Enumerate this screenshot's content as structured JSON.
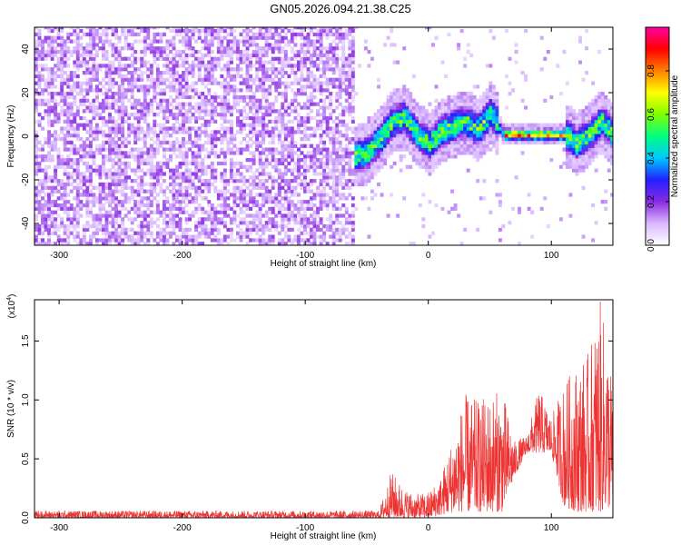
{
  "title": "GN05.2026.094.21.38.C25",
  "chart_data": [
    {
      "type": "heatmap",
      "xlabel": "Height of straight line (km)",
      "ylabel": "Frequency (Hz)",
      "xlim": [
        -320,
        150
      ],
      "ylim": [
        -50,
        50
      ],
      "xticks": [
        -300,
        -200,
        -100,
        0,
        100
      ],
      "yticks": [
        -40,
        -20,
        0,
        20,
        40
      ],
      "colorbar": {
        "label": "Normalized spectral amplitude",
        "range": [
          0,
          1
        ],
        "ticks": [
          "0.0",
          "0.2",
          "0.4",
          "0.6",
          "0.8"
        ],
        "tick_values": [
          0,
          0.2,
          0.4,
          0.6,
          0.8
        ],
        "colormap": [
          "#ffffff",
          "#d9b8ff",
          "#8a2be2",
          "#2020ff",
          "#00c8ff",
          "#00ff80",
          "#80ff00",
          "#ffff00",
          "#ff8000",
          "#ff0000",
          "#ff00a0"
        ]
      },
      "ridge": {
        "x": [
          -60,
          -50,
          -40,
          -30,
          -20,
          -10,
          0,
          10,
          20,
          30,
          40,
          50,
          60,
          70,
          80,
          90,
          100,
          110,
          120,
          130,
          140,
          150
        ],
        "y": [
          -10,
          -8,
          -2,
          6,
          8,
          0,
          -4,
          2,
          4,
          6,
          2,
          10,
          0,
          0,
          0,
          0,
          0,
          0,
          -4,
          0,
          6,
          0
        ]
      }
    },
    {
      "type": "line",
      "xlabel": "Height of straight line (km)",
      "ylabel": "SNR (10 * v/v)",
      "scale_label": "(x10",
      "scale_exp": "4",
      "xlim": [
        -320,
        150
      ],
      "ylim": [
        0,
        1.85
      ],
      "xticks": [
        -300,
        -200,
        -100,
        0,
        100
      ],
      "yticks": [
        0.0,
        0.5,
        1.0,
        1.5
      ],
      "color": "#ee3333",
      "envelope": {
        "x": [
          -320,
          -40,
          -30,
          -20,
          -10,
          0,
          10,
          20,
          30,
          40,
          50,
          60,
          70,
          80,
          90,
          100,
          110,
          120,
          130,
          140,
          150
        ],
        "lower": [
          0.0,
          0.0,
          0.0,
          0.0,
          0.0,
          0.0,
          0.02,
          0.05,
          0.05,
          0.05,
          0.05,
          0.05,
          0.35,
          0.55,
          0.55,
          0.55,
          0.1,
          0.05,
          0.05,
          0.05,
          0.1
        ],
        "upper": [
          0.06,
          0.06,
          0.4,
          0.25,
          0.2,
          0.22,
          0.35,
          0.7,
          1.05,
          1.0,
          1.05,
          1.1,
          0.65,
          0.7,
          1.1,
          0.85,
          1.15,
          1.3,
          1.4,
          1.85,
          1.2
        ]
      }
    }
  ]
}
